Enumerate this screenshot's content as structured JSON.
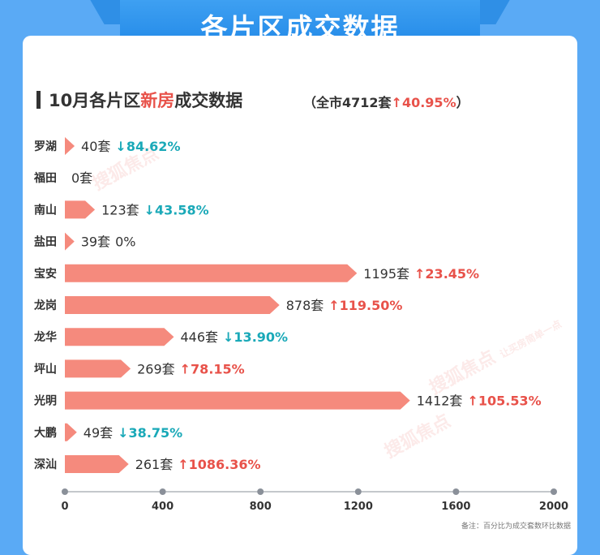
{
  "banner": {
    "title": "各片区成交数据"
  },
  "section": {
    "title_pre": "10月各片区",
    "title_highlight": "新房",
    "title_post": "成交数据",
    "sub_open": "（全市4712套",
    "sub_arrow": "↑",
    "sub_pct": "40.95%",
    "sub_close": "）"
  },
  "chart_data": {
    "type": "bar",
    "orientation": "horizontal",
    "title": "10月各片区新房成交数据",
    "unit_suffix": "套",
    "categories": [
      "罗湖",
      "福田",
      "南山",
      "盐田",
      "宝安",
      "龙岗",
      "龙华",
      "坪山",
      "光明",
      "大鹏",
      "深汕"
    ],
    "values": [
      40,
      0,
      123,
      39,
      1195,
      878,
      446,
      269,
      1412,
      49,
      261
    ],
    "changes": [
      {
        "dir": "down",
        "text": "84.62%"
      },
      {
        "dir": "none",
        "text": ""
      },
      {
        "dir": "down",
        "text": "43.58%"
      },
      {
        "dir": "none",
        "text": "0%"
      },
      {
        "dir": "up",
        "text": "23.45%"
      },
      {
        "dir": "up",
        "text": "119.50%"
      },
      {
        "dir": "down",
        "text": "13.90%"
      },
      {
        "dir": "up",
        "text": "78.15%"
      },
      {
        "dir": "up",
        "text": "105.53%"
      },
      {
        "dir": "down",
        "text": "38.75%"
      },
      {
        "dir": "up",
        "text": "1086.36%"
      }
    ],
    "xlim": [
      0,
      2000
    ],
    "xticks": [
      0,
      400,
      800,
      1200,
      1600,
      2000
    ],
    "grid": false,
    "colors": {
      "bar": "#f58a7d",
      "up": "#e8524a",
      "down": "#1aa9b8",
      "axis": "#8a9099"
    }
  },
  "watermark": {
    "brand": "搜狐焦点",
    "slogan": "让买房简单一点"
  },
  "footnote": "备注：百分比为成交套数环比数据"
}
